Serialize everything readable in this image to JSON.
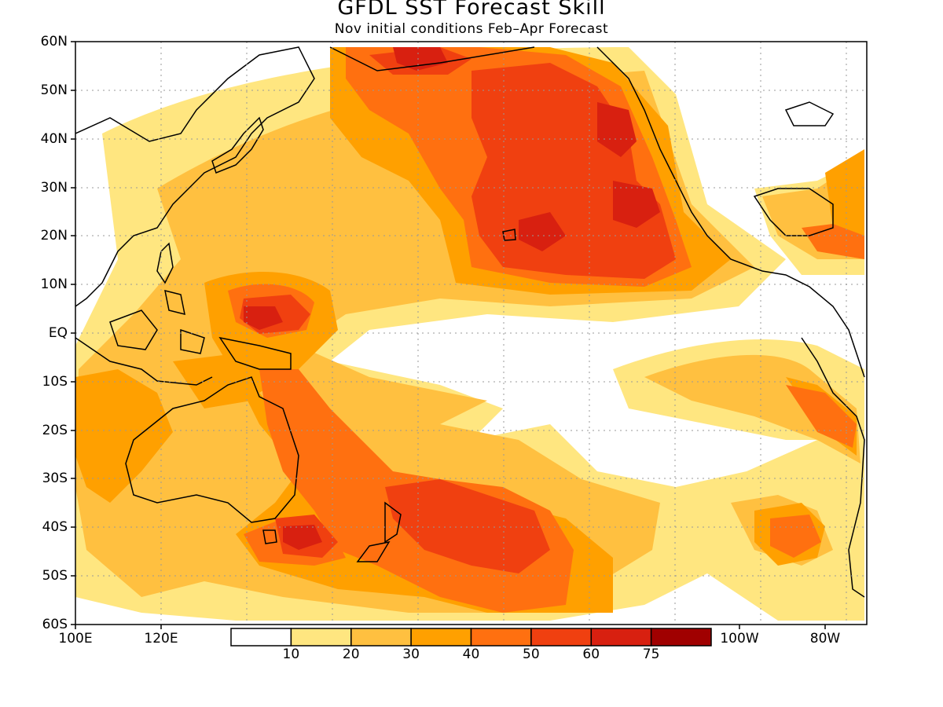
{
  "map": {
    "title": "GFDL SST Forecast Skill",
    "subtitle": "Nov initial conditions  Feb–Apr Forecast",
    "latitude_labels": [
      "60N",
      "50N",
      "40N",
      "30N",
      "20N",
      "10N",
      "EQ",
      "10S",
      "20S",
      "30S",
      "40S",
      "50S",
      "60S"
    ],
    "longitude_labels_left": [
      "100E",
      "120E"
    ],
    "longitude_labels_right": [
      "100W",
      "80W"
    ],
    "extent": {
      "lon_min": 100,
      "lon_max": 285,
      "lat_min": -60,
      "lat_max": 60
    },
    "grid": true
  },
  "legend": {
    "bins": [
      {
        "label": "",
        "color": "#ffffff"
      },
      {
        "label": "10",
        "color": "#ffe680"
      },
      {
        "label": "20",
        "color": "#ffc040"
      },
      {
        "label": "30",
        "color": "#ffa000"
      },
      {
        "label": "40",
        "color": "#ff7010"
      },
      {
        "label": "50",
        "color": "#f04010"
      },
      {
        "label": "60",
        "color": "#d82010"
      },
      {
        "label": "75",
        "color": "#a00000"
      }
    ]
  },
  "colors": {
    "c10": "#ffe680",
    "c20": "#ffc040",
    "c30": "#ffa000",
    "c40": "#ff7010",
    "c50": "#f04010",
    "c60": "#d82010",
    "c75": "#a00000"
  }
}
